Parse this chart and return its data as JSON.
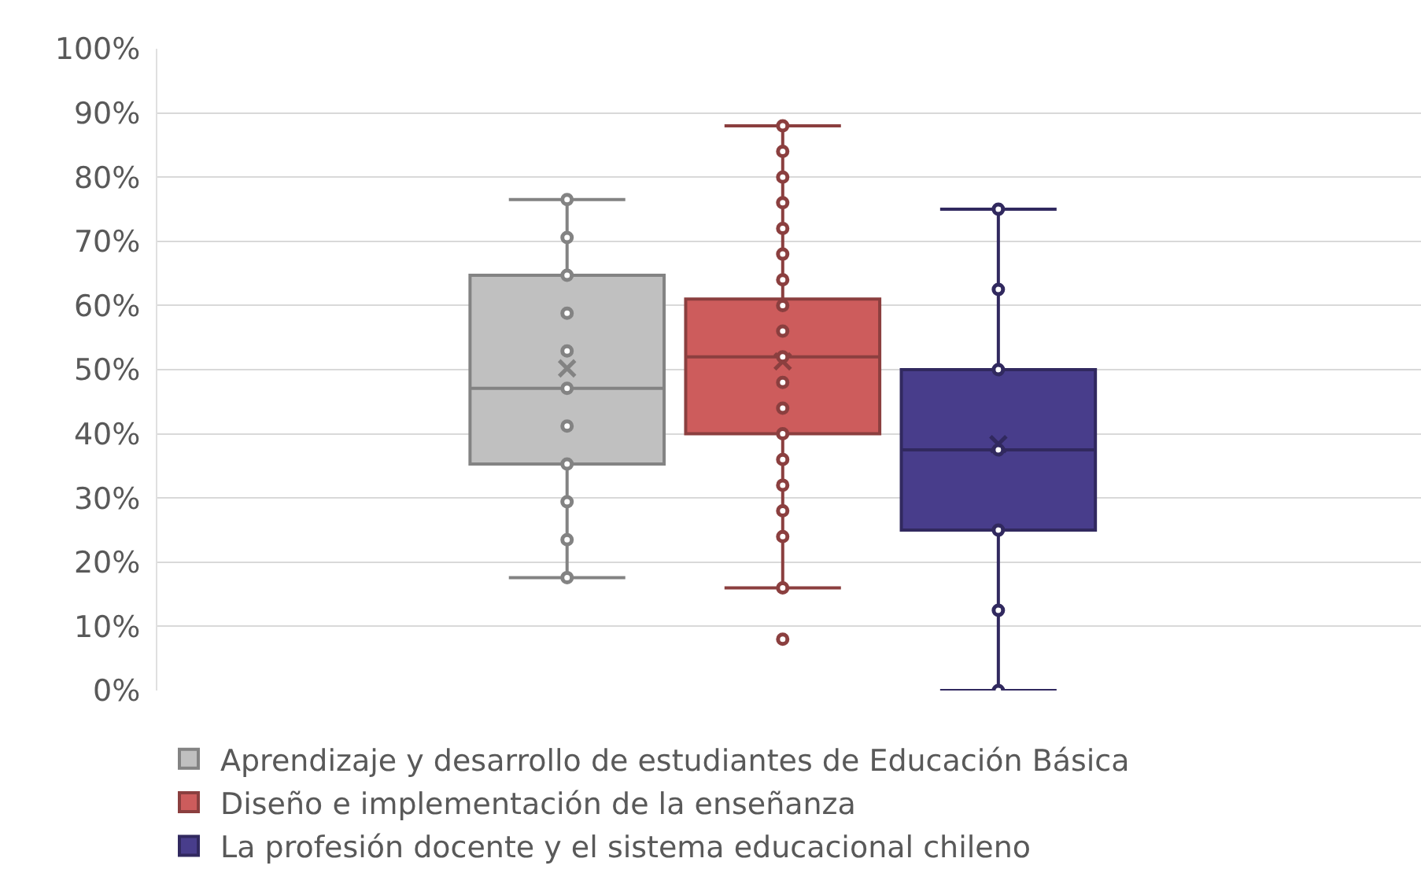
{
  "chart_data": {
    "type": "box",
    "categories": [
      null
    ],
    "series": [
      {
        "name": "Aprendizaje y desarrollo de estudiantes de Educación Básica",
        "color": "#c0c0c0",
        "boxes": [
          {
            "low": 17.6,
            "q1": 35.3,
            "median": 47.1,
            "q3": 64.7,
            "high": 76.5,
            "mean": 50.2,
            "outliers": [
              76.5,
              70.6,
              64.7,
              58.8,
              52.9,
              47.1,
              41.2,
              35.3,
              29.4,
              23.5,
              17.6
            ]
          }
        ]
      },
      {
        "name": "Diseño e implementación de la enseñanza",
        "color": "#cd5c5c",
        "boxes": [
          {
            "low": 16,
            "q1": 40,
            "median": 52,
            "q3": 61,
            "high": 88,
            "mean": 51.3,
            "outliers": [
              88,
              84,
              80,
              76,
              72,
              68,
              64,
              60,
              56,
              52,
              48,
              44,
              40,
              36,
              32,
              28,
              24,
              16,
              8
            ]
          }
        ]
      },
      {
        "name": "La profesión docente y el sistema educacional chileno",
        "color": "#483d8b",
        "boxes": [
          {
            "low": 0,
            "q1": 25,
            "median": 37.5,
            "q3": 50,
            "high": 75,
            "mean": 38.4,
            "outliers": [
              75,
              62.5,
              50,
              37.5,
              25,
              12.5,
              0
            ]
          }
        ]
      }
    ],
    "ylim": [
      0,
      100
    ],
    "yticks": [
      {
        "value": 0,
        "label": "0%"
      },
      {
        "value": 10,
        "label": "10%"
      },
      {
        "value": 20,
        "label": "20%"
      },
      {
        "value": 30,
        "label": "30%"
      },
      {
        "value": 40,
        "label": "40%"
      },
      {
        "value": 50,
        "label": "50%"
      },
      {
        "value": 60,
        "label": "60%"
      },
      {
        "value": 70,
        "label": "70%"
      },
      {
        "value": 80,
        "label": "80%"
      },
      {
        "value": 90,
        "label": "90%"
      },
      {
        "value": 100,
        "label": "100%"
      }
    ],
    "grid": "y",
    "legend": "bottom",
    "marker": "circle"
  }
}
